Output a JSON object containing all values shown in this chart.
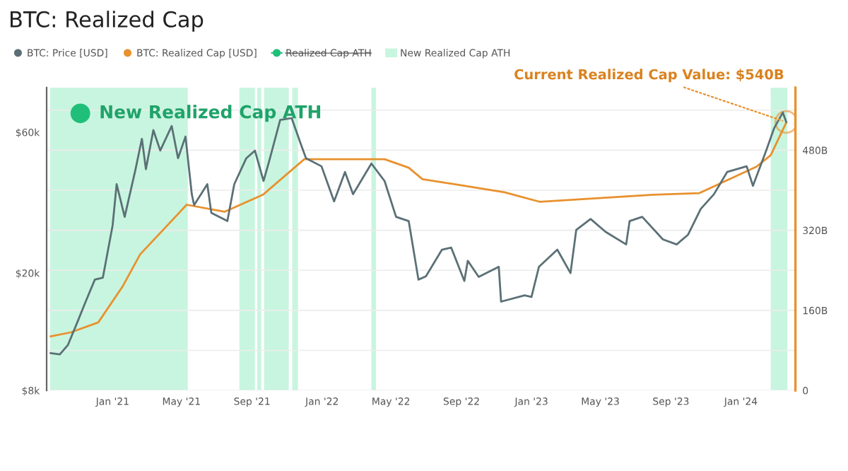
{
  "chart_data": {
    "type": "line",
    "title": "BTC: Realized Cap",
    "series": [
      {
        "name": "BTC: Price [USD]",
        "color": "#5b7076",
        "x": [
          "2020-09-15",
          "2020-10-01",
          "2020-10-15",
          "2020-11-01",
          "2020-11-15",
          "2020-12-01",
          "2020-12-15",
          "2021-01-01",
          "2021-01-08",
          "2021-01-22",
          "2021-02-10",
          "2021-02-21",
          "2021-02-28",
          "2021-03-13",
          "2021-03-25",
          "2021-04-14",
          "2021-04-25",
          "2021-05-08",
          "2021-05-19",
          "2021-05-23",
          "2021-06-15",
          "2021-06-22",
          "2021-07-20",
          "2021-08-01",
          "2021-08-22",
          "2021-09-06",
          "2021-09-21",
          "2021-10-01",
          "2021-10-20",
          "2021-11-09",
          "2021-11-26",
          "2021-12-04",
          "2021-12-31",
          "2022-01-22",
          "2022-02-10",
          "2022-02-24",
          "2022-03-28",
          "2022-04-20",
          "2022-05-10",
          "2022-06-01",
          "2022-06-18",
          "2022-07-01",
          "2022-07-29",
          "2022-08-14",
          "2022-09-06",
          "2022-09-12",
          "2022-10-01",
          "2022-11-05",
          "2022-11-09",
          "2022-12-20",
          "2023-01-01",
          "2023-01-14",
          "2023-02-15",
          "2023-03-10",
          "2023-03-20",
          "2023-04-14",
          "2023-05-10",
          "2023-06-15",
          "2023-06-21",
          "2023-07-13",
          "2023-08-18",
          "2023-09-11",
          "2023-10-01",
          "2023-10-23",
          "2023-11-15",
          "2023-12-08",
          "2024-01-11",
          "2024-01-22",
          "2024-02-14",
          "2024-02-28",
          "2024-03-14",
          "2024-03-20"
        ],
        "values": [
          10700,
          10600,
          11400,
          13700,
          16000,
          19000,
          19300,
          29000,
          40000,
          31000,
          45000,
          57000,
          45000,
          61000,
          52000,
          63000,
          49000,
          58000,
          37000,
          34000,
          40000,
          32000,
          30000,
          40000,
          49000,
          52000,
          41000,
          48000,
          66000,
          67000,
          54000,
          49000,
          46000,
          35000,
          44000,
          37000,
          47000,
          41000,
          31000,
          30000,
          19000,
          19500,
          24000,
          24400,
          18800,
          22000,
          19400,
          21000,
          16000,
          16800,
          16600,
          21000,
          24000,
          20000,
          28000,
          30500,
          27600,
          25000,
          30000,
          31000,
          26000,
          25000,
          27000,
          33000,
          37000,
          44000,
          46000,
          39500,
          52000,
          62000,
          70000,
          65000
        ]
      },
      {
        "name": "BTC: Realized Cap [USD]",
        "color": "#e8912d",
        "axis": "y2",
        "x": [
          "2020-09-15",
          "2020-10-20",
          "2020-12-07",
          "2021-01-18",
          "2021-02-18",
          "2021-05-10",
          "2021-07-15",
          "2021-09-20",
          "2021-12-01",
          "2022-04-20",
          "2022-06-01",
          "2022-06-25",
          "2022-08-25",
          "2022-11-15",
          "2023-01-15",
          "2023-08-01",
          "2023-10-20",
          "2024-01-28",
          "2024-02-22",
          "2024-03-20"
        ],
        "values": [
          108,
          116,
          136,
          207,
          272,
          371,
          357,
          391,
          462,
          462,
          445,
          422,
          411,
          396,
          377,
          391,
          394,
          447,
          470,
          535
        ]
      }
    ],
    "bands": [
      {
        "axis": "x",
        "from": "2020-09-14",
        "to": "2021-05-12",
        "label": "New Realized Cap ATH",
        "color": "#c8f5df"
      },
      {
        "axis": "x",
        "from": "2021-08-10",
        "to": "2021-09-06",
        "color": "#c8f5df"
      },
      {
        "axis": "x",
        "from": "2021-09-10",
        "to": "2021-09-17",
        "color": "#c8f5df"
      },
      {
        "axis": "x",
        "from": "2021-09-22",
        "to": "2021-11-04",
        "color": "#c8f5df"
      },
      {
        "axis": "x",
        "from": "2021-11-10",
        "to": "2021-11-20",
        "color": "#c8f5df"
      },
      {
        "axis": "x",
        "from": "2022-03-28",
        "to": "2022-04-05",
        "color": "#c8f5df"
      },
      {
        "axis": "x",
        "from": "2024-02-22",
        "to": "2024-03-22",
        "color": "#c8f5df"
      }
    ],
    "annotations": [
      "Realized Cap ATH",
      "New Realized Cap ATH",
      {
        "text": "Current Realized Cap Value: $540B",
        "x": "2024-03-20",
        "y": 65000
      }
    ],
    "log": "y",
    "xlim": [
      "2020-09-08",
      "2024-04-05"
    ],
    "xticks": [
      {
        "value": "2021-01-01",
        "label": "Jan '21"
      },
      {
        "value": "2021-05-01",
        "label": "May '21"
      },
      {
        "value": "2021-09-01",
        "label": "Sep '21"
      },
      {
        "value": "2022-01-01",
        "label": "Jan '22"
      },
      {
        "value": "2022-05-01",
        "label": "May '22"
      },
      {
        "value": "2022-09-01",
        "label": "Sep '22"
      },
      {
        "value": "2023-01-01",
        "label": "Jan '23"
      },
      {
        "value": "2023-05-01",
        "label": "May '23"
      },
      {
        "value": "2023-09-01",
        "label": "Sep '23"
      },
      {
        "value": "2024-01-01",
        "label": "Jan '24"
      }
    ],
    "ylim": [
      8000,
      85000
    ],
    "yticks": [
      {
        "value": 8000,
        "label": "$8k"
      },
      {
        "value": 20000,
        "label": "$20k"
      },
      {
        "value": 60000,
        "label": "$60k"
      }
    ],
    "y2lim": [
      0,
      605
    ],
    "y2ticks": [
      0,
      {
        "value": 80,
        "label": null
      },
      {
        "value": 160,
        "label": "160B"
      },
      {
        "value": 240,
        "label": null
      },
      {
        "value": 320,
        "label": "320B"
      },
      {
        "value": 400,
        "label": null
      },
      {
        "value": 480,
        "label": "480B"
      },
      {
        "value": 560,
        "label": null
      }
    ],
    "grid": "y",
    "legend": "top left",
    "marker": "none",
    "line_style": "solid"
  }
}
